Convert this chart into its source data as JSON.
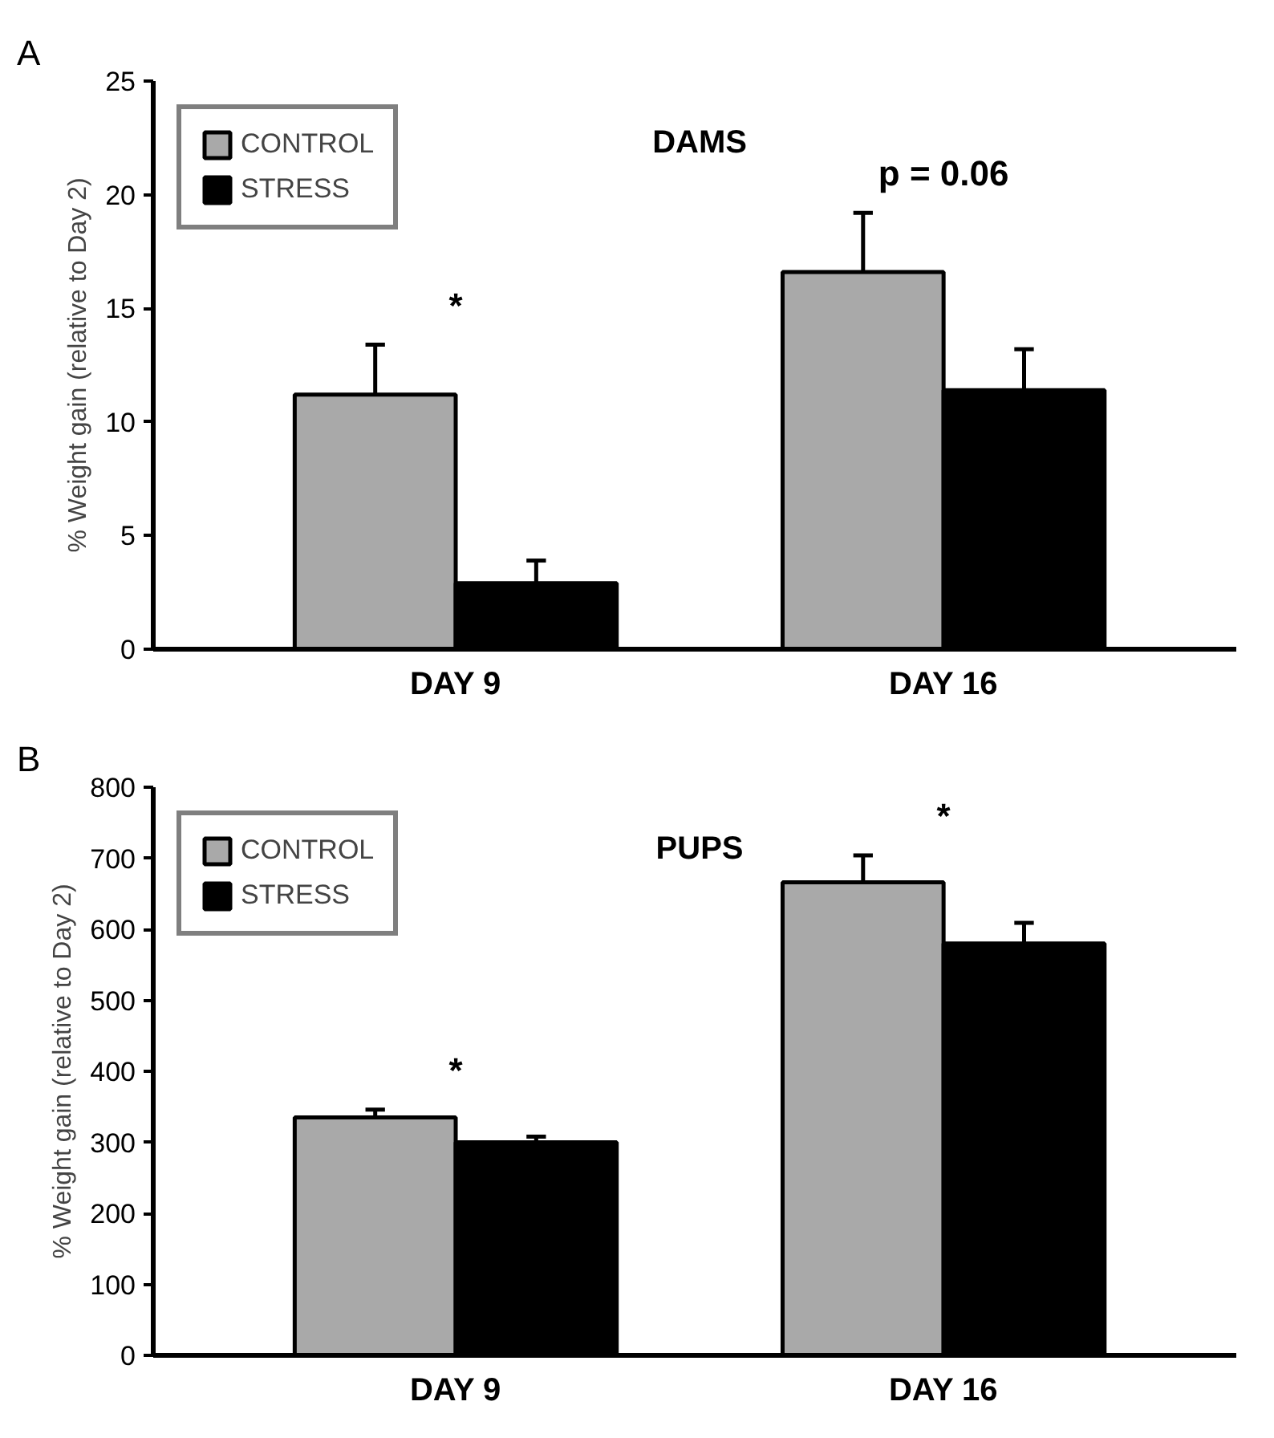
{
  "chart_data": [
    {
      "type": "bar",
      "title": "DAMS",
      "ylabel": "% Weight gain (relative to Day 2)",
      "categories": [
        "DAY 9",
        "DAY 16"
      ],
      "series": [
        {
          "name": "CONTROL",
          "color": "#a9a9a9",
          "values": [
            11.2,
            16.6
          ],
          "errors": [
            2.2,
            2.6
          ]
        },
        {
          "name": "STRESS",
          "color": "#000000",
          "values": [
            2.9,
            11.4
          ],
          "errors": [
            1.0,
            1.8
          ]
        }
      ],
      "ylim": [
        0,
        25
      ],
      "yticks": [
        0,
        5,
        10,
        15,
        20,
        25
      ],
      "grid": false,
      "legend": "top left",
      "annotations": [
        "A",
        "*",
        "p = 0.06"
      ]
    },
    {
      "type": "bar",
      "title": "PUPS",
      "ylabel": "% Weight gain (relative to Day 2)",
      "categories": [
        "DAY 9",
        "DAY 16"
      ],
      "series": [
        {
          "name": "CONTROL",
          "color": "#a9a9a9",
          "values": [
            335,
            666
          ],
          "errors": [
            11,
            38
          ]
        },
        {
          "name": "STRESS",
          "color": "#000000",
          "values": [
            300,
            580
          ],
          "errors": [
            8,
            29
          ]
        }
      ],
      "ylim": [
        0,
        800
      ],
      "yticks": [
        0,
        100,
        200,
        300,
        400,
        500,
        600,
        700,
        800
      ],
      "grid": false,
      "legend": "top left",
      "annotations": [
        "B",
        "*",
        "*"
      ]
    }
  ]
}
